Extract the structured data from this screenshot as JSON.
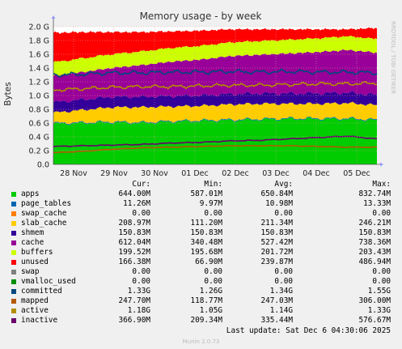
{
  "chart_data": {
    "type": "area",
    "title": "Memory usage - by week",
    "ylabel": "Bytes",
    "ylim": [
      0,
      2.0
    ],
    "yunit": "G",
    "ytick_labels": [
      "0.0",
      "0.2 G",
      "0.4 G",
      "0.6 G",
      "0.8 G",
      "1.0 G",
      "1.2 G",
      "1.4 G",
      "1.6 G",
      "1.8 G",
      "2.0 G"
    ],
    "x_labels": [
      "28 Nov",
      "29 Nov",
      "30 Nov",
      "01 Dec",
      "02 Dec",
      "03 Dec",
      "04 Dec",
      "05 Dec"
    ],
    "grid": true,
    "side_label": "RRDTOOL / TOBI OETIKER",
    "columns": [
      "Cur:",
      "Min:",
      "Avg:",
      "Max:"
    ],
    "series": [
      {
        "name": "apps",
        "color": "#00cc00",
        "cur": "644.00M",
        "min": "587.01M",
        "avg": "650.84M",
        "max": "832.74M",
        "stacked": true,
        "values_g": [
          0.59,
          0.6,
          0.61,
          0.6,
          0.62,
          0.63,
          0.64,
          0.65,
          0.66,
          0.66,
          0.66,
          0.64
        ]
      },
      {
        "name": "page_tables",
        "color": "#0066b3",
        "cur": "11.26M",
        "min": "9.97M",
        "avg": "10.98M",
        "max": "13.33M",
        "stacked": true,
        "values_g": [
          0.011,
          0.011,
          0.011,
          0.011,
          0.011,
          0.011,
          0.011,
          0.011,
          0.011,
          0.011,
          0.011,
          0.011
        ]
      },
      {
        "name": "swap_cache",
        "color": "#ff8000",
        "cur": "0.00",
        "min": "0.00",
        "avg": "0.00",
        "max": "0.00",
        "stacked": true,
        "values_g": [
          0,
          0,
          0,
          0,
          0,
          0,
          0,
          0,
          0,
          0,
          0,
          0
        ]
      },
      {
        "name": "slab_cache",
        "color": "#ffcc00",
        "cur": "208.97M",
        "min": "111.20M",
        "avg": "211.34M",
        "max": "246.21M",
        "stacked": true,
        "values_g": [
          0.15,
          0.18,
          0.21,
          0.22,
          0.21,
          0.21,
          0.22,
          0.22,
          0.21,
          0.21,
          0.22,
          0.21
        ]
      },
      {
        "name": "shmem",
        "color": "#330099",
        "cur": "150.83M",
        "min": "150.83M",
        "avg": "150.83M",
        "max": "150.83M",
        "stacked": true,
        "values_g": [
          0.151,
          0.151,
          0.151,
          0.151,
          0.151,
          0.151,
          0.151,
          0.151,
          0.151,
          0.151,
          0.151,
          0.151
        ]
      },
      {
        "name": "cache",
        "color": "#990099",
        "cur": "612.04M",
        "min": "340.48M",
        "avg": "527.42M",
        "max": "738.36M",
        "stacked": true,
        "values_g": [
          0.38,
          0.4,
          0.42,
          0.46,
          0.5,
          0.52,
          0.55,
          0.56,
          0.58,
          0.6,
          0.62,
          0.61
        ]
      },
      {
        "name": "buffers",
        "color": "#ccff00",
        "cur": "199.52M",
        "min": "195.68M",
        "avg": "201.72M",
        "max": "203.43M",
        "stacked": true,
        "values_g": [
          0.2,
          0.2,
          0.2,
          0.2,
          0.2,
          0.2,
          0.2,
          0.2,
          0.2,
          0.2,
          0.2,
          0.2
        ]
      },
      {
        "name": "unused",
        "color": "#ff0000",
        "cur": "166.38M",
        "min": "66.90M",
        "avg": "239.87M",
        "max": "486.94M",
        "stacked": true,
        "values_g": [
          0.43,
          0.38,
          0.32,
          0.28,
          0.24,
          0.22,
          0.19,
          0.17,
          0.15,
          0.13,
          0.1,
          0.16
        ]
      },
      {
        "name": "swap",
        "color": "#808080",
        "cur": "0.00",
        "min": "0.00",
        "avg": "0.00",
        "max": "0.00",
        "stacked": true,
        "values_g": [
          0,
          0,
          0,
          0,
          0,
          0,
          0,
          0,
          0,
          0,
          0,
          0
        ]
      },
      {
        "name": "vmalloc_used",
        "color": "#008f00",
        "cur": "0.00",
        "min": "0.00",
        "avg": "0.00",
        "max": "0.00",
        "stacked": false,
        "values_g": [
          0,
          0,
          0,
          0,
          0,
          0,
          0,
          0,
          0,
          0,
          0,
          0
        ]
      },
      {
        "name": "committed",
        "color": "#00487d",
        "cur": "1.33G",
        "min": "1.26G",
        "avg": "1.34G",
        "max": "1.55G",
        "stacked": false,
        "values_g": [
          1.3,
          1.31,
          1.33,
          1.33,
          1.34,
          1.34,
          1.35,
          1.34,
          1.35,
          1.34,
          1.34,
          1.33
        ]
      },
      {
        "name": "mapped",
        "color": "#b35a00",
        "cur": "247.70M",
        "min": "118.77M",
        "avg": "247.03M",
        "max": "306.00M",
        "stacked": false,
        "values_g": [
          0.17,
          0.19,
          0.22,
          0.24,
          0.25,
          0.26,
          0.27,
          0.27,
          0.27,
          0.26,
          0.25,
          0.25
        ]
      },
      {
        "name": "active",
        "color": "#b38f00",
        "cur": "1.18G",
        "min": "1.05G",
        "avg": "1.14G",
        "max": "1.33G",
        "stacked": false,
        "values_g": [
          1.08,
          1.1,
          1.12,
          1.13,
          1.13,
          1.14,
          1.15,
          1.15,
          1.16,
          1.17,
          1.17,
          1.18
        ]
      },
      {
        "name": "inactive",
        "color": "#6b006b",
        "cur": "366.90M",
        "min": "209.34M",
        "avg": "335.44M",
        "max": "576.67M",
        "stacked": false,
        "values_g": [
          0.26,
          0.27,
          0.28,
          0.29,
          0.31,
          0.32,
          0.34,
          0.35,
          0.37,
          0.39,
          0.41,
          0.37
        ]
      }
    ],
    "last_update": "Last update: Sat Dec  6 04:30:06 2025",
    "generator": "Munin 2.0.73"
  }
}
